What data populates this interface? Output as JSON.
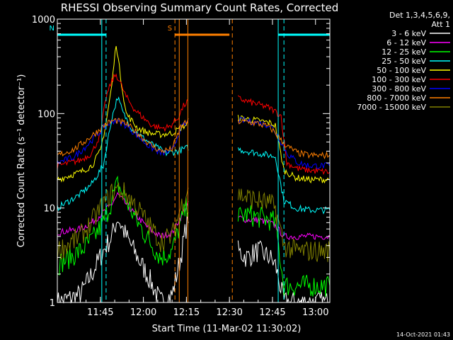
{
  "chart_data": {
    "type": "line",
    "title": "RHESSI Observing Summary Count Rates, Corrected",
    "xlabel": "Start Time (11-Mar-02 11:30:02)",
    "ylabel": "Corrected Count Rate (s⁻¹ detector⁻¹)",
    "yscale": "log",
    "ylim": [
      1,
      1000
    ],
    "xlim_minutes": [
      0,
      95
    ],
    "x_ticks": [
      {
        "label": "11:45",
        "minutes": 15
      },
      {
        "label": "12:00",
        "minutes": 30
      },
      {
        "label": "12:15",
        "minutes": 45
      },
      {
        "label": "12:30",
        "minutes": 60
      },
      {
        "label": "12:45",
        "minutes": 75
      },
      {
        "label": "13:00",
        "minutes": 90
      }
    ],
    "y_ticks": [
      {
        "label": "1",
        "value": 1
      },
      {
        "label": "10",
        "value": 10
      },
      {
        "label": "100",
        "value": 100
      },
      {
        "label": "1000",
        "value": 1000
      }
    ],
    "legend_header": [
      "Det 1,3,4,5,6,9,",
      "Att 1"
    ],
    "legend_placement": "right",
    "data_gap_minutes": [
      46,
      63
    ],
    "flags": [
      {
        "label": "N",
        "color": "#00ffff",
        "start": 0,
        "end": 17,
        "style": "solid-bar"
      },
      {
        "label": "S",
        "color": "#ff7f00",
        "start": 41,
        "end": 60,
        "style": "solid-bar"
      },
      {
        "label": "",
        "color": "#00ffff",
        "start": 77,
        "end": 95,
        "style": "solid-bar"
      }
    ],
    "vertical_lines": [
      {
        "minutes": 17,
        "color": "#00ffff",
        "dash": true
      },
      {
        "minutes": 15.5,
        "color": "#00ffff",
        "dash": false
      },
      {
        "minutes": 41,
        "color": "#ff7f00",
        "dash": true
      },
      {
        "minutes": 42.5,
        "color": "#ff7f00",
        "dash": false
      },
      {
        "minutes": 45.5,
        "color": "#ff7f00",
        "dash": false
      },
      {
        "minutes": 61,
        "color": "#ff7f00",
        "dash": true
      },
      {
        "minutes": 77,
        "color": "#00ffff",
        "dash": false
      },
      {
        "minutes": 79,
        "color": "#00ffff",
        "dash": true
      }
    ],
    "series": [
      {
        "name": "3 - 6 keV",
        "color": "#ffffff",
        "x": [
          0,
          8,
          12,
          16,
          19,
          21,
          24,
          28,
          32,
          36,
          40,
          43,
          46,
          63,
          66,
          70,
          74,
          76,
          79,
          83,
          88,
          95
        ],
        "y": [
          1.0,
          1.2,
          2.0,
          3.5,
          5.0,
          8.0,
          5.0,
          3.0,
          1.8,
          1.0,
          1.2,
          3.0,
          9.5,
          3.5,
          3.0,
          3.5,
          3.0,
          2.5,
          1.0,
          1.0,
          1.0,
          1.0
        ]
      },
      {
        "name": "6 - 12 keV",
        "color": "#ff00ff",
        "x": [
          0,
          8,
          12,
          16,
          19,
          21,
          24,
          28,
          32,
          36,
          40,
          43,
          46,
          63,
          66,
          70,
          74,
          76,
          79,
          83,
          88,
          95
        ],
        "y": [
          5.5,
          6.0,
          7.0,
          9.0,
          11.0,
          14.0,
          11.0,
          8.0,
          6.0,
          5.0,
          5.5,
          8.0,
          11.5,
          8.0,
          7.5,
          7.5,
          7.0,
          6.5,
          5.0,
          5.0,
          5.0,
          5.0
        ]
      },
      {
        "name": "12 - 25 keV",
        "color": "#00ff00",
        "x": [
          0,
          8,
          12,
          16,
          19,
          21,
          24,
          28,
          32,
          36,
          40,
          43,
          46,
          63,
          66,
          70,
          74,
          76,
          79,
          83,
          88,
          95
        ],
        "y": [
          2.5,
          3.5,
          4.5,
          7.0,
          12.0,
          18.0,
          12.0,
          7.0,
          4.5,
          3.0,
          3.5,
          7.0,
          12.0,
          8.0,
          8.5,
          8.0,
          7.5,
          7.0,
          1.5,
          1.5,
          1.5,
          1.5
        ]
      },
      {
        "name": "25 - 50 keV",
        "color": "#00ffff",
        "x": [
          0,
          8,
          12,
          16,
          19,
          21,
          23,
          26,
          30,
          34,
          38,
          42,
          46,
          63,
          66,
          70,
          74,
          76,
          79,
          83,
          88,
          95
        ],
        "y": [
          10.0,
          14.0,
          18.0,
          28.0,
          90.0,
          150.0,
          100.0,
          70.0,
          55.0,
          45.0,
          38.0,
          40.0,
          44.0,
          42.0,
          40.0,
          38.0,
          36.0,
          35.0,
          12.0,
          10.0,
          9.5,
          9.5
        ]
      },
      {
        "name": "50 - 100 keV",
        "color": "#ffff00",
        "x": [
          0,
          8,
          12,
          15,
          17,
          19,
          20.5,
          22,
          24,
          28,
          32,
          36,
          40,
          43,
          46,
          63,
          66,
          70,
          74,
          76,
          79,
          83,
          88,
          95
        ],
        "y": [
          20.0,
          24.0,
          28.0,
          40.0,
          80.0,
          200.0,
          560.0,
          250.0,
          100.0,
          70.0,
          62.0,
          60.0,
          62.0,
          70.0,
          80.0,
          90.0,
          88.0,
          84.0,
          80.0,
          75.0,
          25.0,
          21.0,
          20.0,
          20.0
        ]
      },
      {
        "name": "100 - 300 keV",
        "color": "#ff0000",
        "x": [
          0,
          8,
          12,
          15,
          17,
          19,
          20.5,
          22,
          24,
          27,
          30,
          33,
          36,
          39,
          42,
          44,
          46,
          63,
          66,
          70,
          74,
          76,
          78,
          80,
          84,
          88,
          95
        ],
        "y": [
          28.0,
          32.0,
          38.0,
          60.0,
          150.0,
          220.0,
          260.0,
          210.0,
          150.0,
          110.0,
          90.0,
          75.0,
          70.0,
          72.0,
          90.0,
          120.0,
          140.0,
          145.0,
          135.0,
          125.0,
          115.0,
          105.0,
          95.0,
          30.0,
          26.0,
          25.0,
          24.0
        ]
      },
      {
        "name": "300 - 800 keV",
        "color": "#0000ff",
        "x": [
          0,
          6,
          10,
          14,
          17,
          20,
          24,
          28,
          32,
          36,
          40,
          43,
          46,
          63,
          66,
          70,
          74,
          76,
          78,
          80,
          84,
          88,
          95
        ],
        "y": [
          30.0,
          35.0,
          45.0,
          60.0,
          75.0,
          85.0,
          75.0,
          58.0,
          45.0,
          38.0,
          40.0,
          70.0,
          85.0,
          85.0,
          84.0,
          80.0,
          75.0,
          65.0,
          50.0,
          38.0,
          30.0,
          28.0,
          28.0
        ]
      },
      {
        "name": "800 - 7000 keV",
        "color": "#ff7f00",
        "x": [
          0,
          6,
          10,
          14,
          17,
          20,
          24,
          28,
          32,
          36,
          40,
          43,
          46,
          63,
          66,
          70,
          74,
          76,
          78,
          80,
          84,
          88,
          95
        ],
        "y": [
          36.0,
          42.0,
          52.0,
          65.0,
          78.0,
          85.0,
          78.0,
          62.0,
          48.0,
          40.0,
          42.0,
          72.0,
          85.0,
          82.0,
          82.0,
          78.0,
          72.0,
          62.0,
          52.0,
          45.0,
          38.0,
          36.0,
          36.0
        ]
      },
      {
        "name": "7000 - 15000 keV",
        "color": "#808000",
        "x": [
          0,
          8,
          12,
          16,
          19,
          21,
          24,
          28,
          32,
          36,
          40,
          43,
          46,
          63,
          66,
          70,
          74,
          76,
          79,
          83,
          88,
          95
        ],
        "y": [
          3.5,
          5.0,
          7.0,
          11.0,
          14.5,
          16.0,
          14.0,
          10.0,
          6.5,
          4.5,
          5.0,
          10.0,
          18.0,
          14.0,
          13.0,
          12.0,
          11.0,
          10.0,
          4.0,
          3.5,
          3.5,
          3.5
        ]
      }
    ],
    "timestamp": "14-Oct-2021 01:43"
  }
}
